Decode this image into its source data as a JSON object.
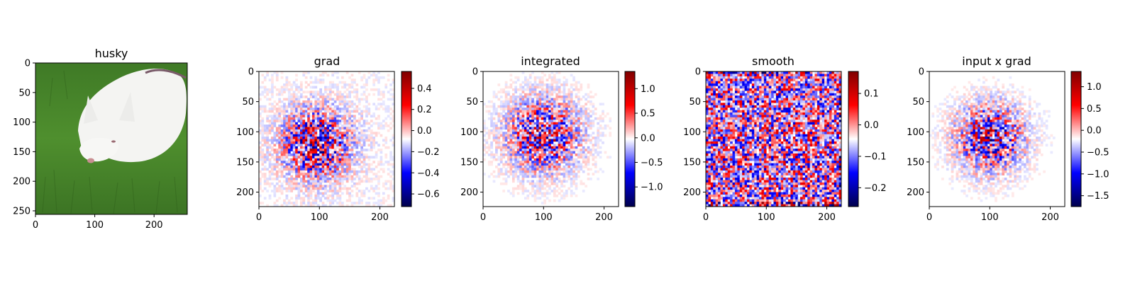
{
  "chart_data": [
    {
      "type": "image",
      "title": "husky",
      "image_description": "white dog lying on green grass",
      "xlim": [
        0,
        256
      ],
      "ylim": [
        256,
        0
      ],
      "xticks": [
        0,
        100,
        200
      ],
      "yticks": [
        0,
        50,
        100,
        150,
        200,
        250
      ],
      "colorbar": null
    },
    {
      "type": "heatmap",
      "title": "grad",
      "xlim": [
        0,
        224
      ],
      "ylim": [
        224,
        0
      ],
      "xticks": [
        0,
        100,
        200
      ],
      "yticks": [
        0,
        50,
        100,
        150,
        200
      ],
      "colormap": "seismic",
      "colorbar": {
        "min": -0.72,
        "max": 0.56,
        "ticks": [
          0.4,
          0.2,
          0.0,
          -0.2,
          -0.4,
          -0.6
        ],
        "tick_labels": [
          "0.4",
          "0.2",
          "0.0",
          "−0.2",
          "−0.4",
          "−0.6"
        ]
      },
      "pattern": {
        "center": [
          95,
          120
        ],
        "spread": 38,
        "strength": 0.9,
        "background": 0.06
      }
    },
    {
      "type": "heatmap",
      "title": "integrated",
      "xlim": [
        0,
        224
      ],
      "ylim": [
        224,
        0
      ],
      "xticks": [
        0,
        100,
        200
      ],
      "yticks": [
        0,
        50,
        100,
        150,
        200
      ],
      "colormap": "seismic",
      "colorbar": {
        "min": -1.4,
        "max": 1.35,
        "ticks": [
          1.0,
          0.5,
          0.0,
          -0.5,
          -1.0
        ],
        "tick_labels": [
          "1.0",
          "0.5",
          "0.0",
          "−0.5",
          "−1.0"
        ]
      },
      "pattern": {
        "center": [
          100,
          105
        ],
        "spread": 40,
        "strength": 0.85,
        "background": 0.03
      }
    },
    {
      "type": "heatmap",
      "title": "smooth",
      "xlim": [
        0,
        224
      ],
      "ylim": [
        224,
        0
      ],
      "xticks": [
        0,
        100,
        200
      ],
      "yticks": [
        0,
        50,
        100,
        150,
        200
      ],
      "colormap": "seismic",
      "colorbar": {
        "min": -0.26,
        "max": 0.17,
        "ticks": [
          0.1,
          0.0,
          -0.1,
          -0.2
        ],
        "tick_labels": [
          "0.1",
          "0.0",
          "−0.1",
          "−0.2"
        ]
      },
      "pattern": {
        "center": [
          112,
          112
        ],
        "spread": 200,
        "strength": 0.35,
        "background": 0.3
      }
    },
    {
      "type": "heatmap",
      "title": "input x grad",
      "xlim": [
        0,
        224
      ],
      "ylim": [
        224,
        0
      ],
      "xticks": [
        0,
        100,
        200
      ],
      "yticks": [
        0,
        50,
        100,
        150,
        200
      ],
      "colormap": "seismic",
      "colorbar": {
        "min": -1.75,
        "max": 1.35,
        "ticks": [
          1.0,
          0.5,
          0.0,
          -0.5,
          -1.0,
          -1.5
        ],
        "tick_labels": [
          "1.0",
          "0.5",
          "0.0",
          "−0.5",
          "−1.0",
          "−1.5"
        ]
      },
      "pattern": {
        "center": [
          100,
          110
        ],
        "spread": 36,
        "strength": 0.9,
        "background": 0.03
      }
    }
  ]
}
